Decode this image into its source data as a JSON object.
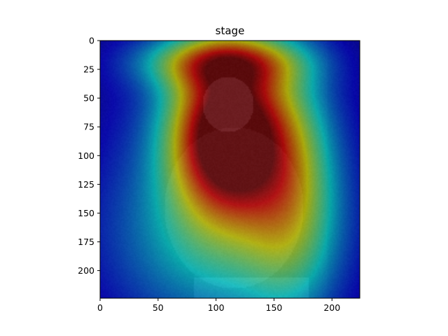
{
  "chart_data": {
    "type": "heatmap",
    "title": "stage",
    "xlabel": "",
    "ylabel": "",
    "xlim": [
      0,
      224
    ],
    "ylim": [
      224,
      0
    ],
    "x_ticks": [
      0,
      50,
      100,
      150,
      200
    ],
    "y_ticks": [
      0,
      25,
      50,
      75,
      100,
      125,
      150,
      175,
      200
    ],
    "colormap": "jet",
    "grid": false,
    "legend": "none",
    "heat_peaks": [
      {
        "x": 110,
        "y": 80,
        "sx": 34,
        "sy": 48,
        "weight": 1.0
      },
      {
        "x": 105,
        "y": 18,
        "sx": 48,
        "sy": 16,
        "weight": 0.45
      },
      {
        "x": 165,
        "y": 130,
        "sx": 28,
        "sy": 70,
        "weight": 0.35
      },
      {
        "x": 100,
        "y": 175,
        "sx": 70,
        "sy": 55,
        "weight": 0.22
      },
      {
        "x": 110,
        "y": 110,
        "sx": 90,
        "sy": 130,
        "weight": 0.2
      }
    ],
    "background_colors": {
      "bg_dark": "#0a0f3a",
      "bg_mid": "#1a2a5a"
    }
  }
}
